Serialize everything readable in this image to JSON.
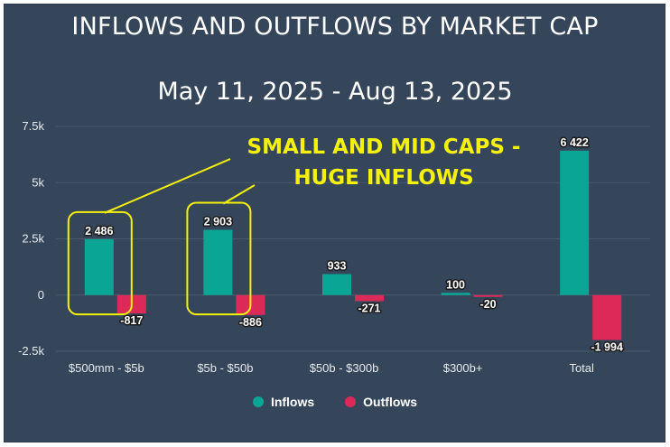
{
  "chart_data": {
    "type": "bar",
    "title": "INFLOWS AND OUTFLOWS BY MARKET CAP",
    "subtitle": "May 11, 2025 - Aug 13, 2025",
    "categories": [
      "$500mm - $5b",
      "$5b - $50b",
      "$50b - $300b",
      "$300b+",
      "Total"
    ],
    "series": [
      {
        "name": "Inflows",
        "color": "#0aa595",
        "values": [
          2486,
          2903,
          933,
          100,
          6422
        ],
        "labels": [
          "2 486",
          "2 903",
          "933",
          "100",
          "6 422"
        ]
      },
      {
        "name": "Outflows",
        "color": "#db2a57",
        "values": [
          -817,
          -886,
          -271,
          -20,
          -1994
        ],
        "labels": [
          "-817",
          "-886",
          "-271",
          "-20",
          "-1 994"
        ]
      }
    ],
    "ylim": [
      -2500,
      7500
    ],
    "yticks": [
      -2500,
      0,
      2500,
      5000,
      7500
    ],
    "ytick_labels": [
      "-2.5k",
      "0",
      "2.5k",
      "5k",
      "7.5k"
    ],
    "xlabel": "",
    "ylabel": "",
    "grid": true,
    "legend_position": "bottom-center",
    "annotation": {
      "line1": "SMALL AND MID CAPS -",
      "line2": "HUGE INFLOWS",
      "highlighted_categories": [
        "$500mm - $5b",
        "$5b - $50b"
      ],
      "color": "#f4f10a"
    }
  },
  "colors": {
    "background": "#36465a",
    "grid": "#4a5a6e",
    "text": "#ffffff"
  }
}
